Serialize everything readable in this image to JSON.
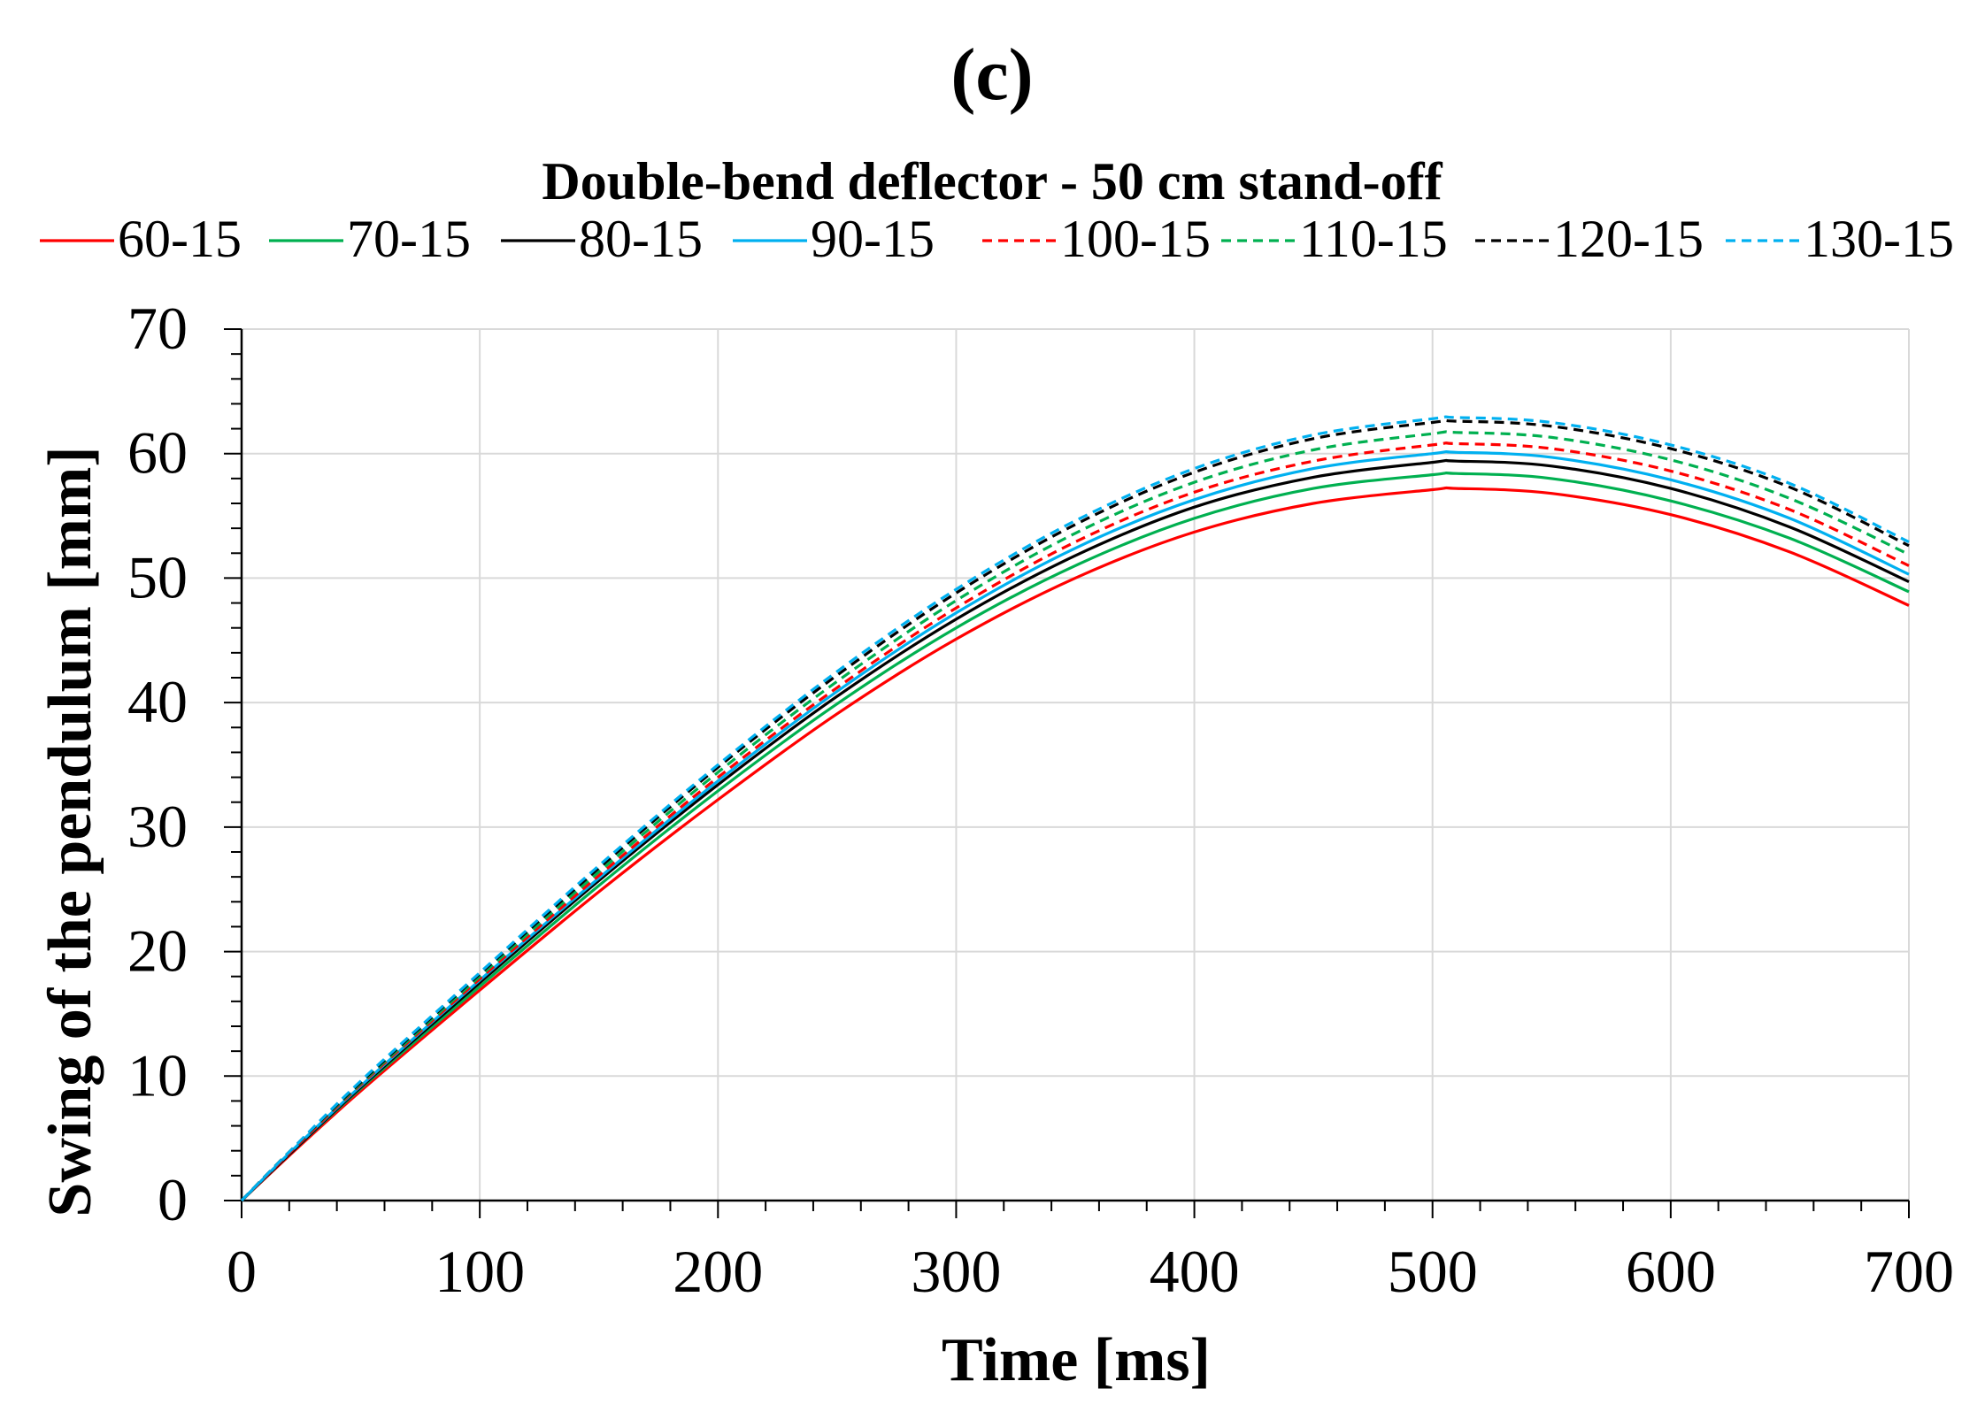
{
  "panel_label": "(c)",
  "chart_data": {
    "type": "line",
    "title": "Double-bend deflector - 50 cm stand-off",
    "xlabel": "Time [ms]",
    "ylabel": "Swing of the pendulum [mm]",
    "xlim": [
      0,
      700
    ],
    "ylim": [
      0,
      70
    ],
    "xticks": [
      0,
      100,
      200,
      300,
      400,
      500,
      600,
      700
    ],
    "yticks": [
      0,
      10,
      20,
      30,
      40,
      50,
      60,
      70
    ],
    "grid": true,
    "legend_position": "top",
    "x": [
      0,
      20,
      50,
      100,
      150,
      200,
      250,
      300,
      350,
      400,
      450,
      500,
      510,
      550,
      600,
      650,
      700
    ],
    "series": [
      {
        "name": "60-15",
        "color": "#ff0000",
        "dash": "solid",
        "values": [
          0,
          3.6,
          8.8,
          16.9,
          24.8,
          32.2,
          39.1,
          45.1,
          50.0,
          53.7,
          56.0,
          57.1,
          57.2,
          56.8,
          55.1,
          52.1,
          47.8
        ]
      },
      {
        "name": "70-15",
        "color": "#00b050",
        "dash": "solid",
        "values": [
          0,
          3.7,
          9.0,
          17.2,
          25.3,
          32.9,
          39.9,
          46.0,
          51.0,
          54.8,
          57.2,
          58.3,
          58.4,
          58.0,
          56.2,
          53.2,
          48.9
        ]
      },
      {
        "name": "80-15",
        "color": "#000000",
        "dash": "solid",
        "values": [
          0,
          3.7,
          9.1,
          17.5,
          25.7,
          33.4,
          40.5,
          46.7,
          51.8,
          55.7,
          58.1,
          59.3,
          59.4,
          59.0,
          57.2,
          54.1,
          49.7
        ]
      },
      {
        "name": "90-15",
        "color": "#00b0f0",
        "dash": "solid",
        "values": [
          0,
          3.8,
          9.2,
          17.7,
          25.9,
          33.7,
          40.9,
          47.2,
          52.4,
          56.3,
          58.8,
          60.0,
          60.1,
          59.7,
          57.9,
          54.8,
          50.3
        ]
      },
      {
        "name": "100-15",
        "color": "#ff0000",
        "dash": "dashed",
        "values": [
          0,
          3.8,
          9.3,
          17.8,
          26.1,
          34.0,
          41.2,
          47.6,
          52.9,
          56.9,
          59.4,
          60.7,
          60.8,
          60.4,
          58.6,
          55.5,
          51.0
        ]
      },
      {
        "name": "110-15",
        "color": "#00b050",
        "dash": "dashed",
        "values": [
          0,
          3.9,
          9.4,
          18.0,
          26.4,
          34.4,
          41.7,
          48.2,
          53.6,
          57.7,
          60.3,
          61.6,
          61.7,
          61.3,
          59.5,
          56.4,
          51.9
        ]
      },
      {
        "name": "120-15",
        "color": "#000000",
        "dash": "dashed",
        "values": [
          0,
          3.9,
          9.5,
          18.2,
          26.7,
          34.8,
          42.2,
          48.8,
          54.3,
          58.5,
          61.2,
          62.5,
          62.6,
          62.2,
          60.4,
          57.3,
          52.6
        ]
      },
      {
        "name": "130-15",
        "color": "#00b0f0",
        "dash": "dashed",
        "values": [
          0,
          3.9,
          9.6,
          18.3,
          26.9,
          35.0,
          42.5,
          49.1,
          54.6,
          58.8,
          61.5,
          62.8,
          62.9,
          62.5,
          60.7,
          57.6,
          52.9
        ]
      }
    ]
  }
}
